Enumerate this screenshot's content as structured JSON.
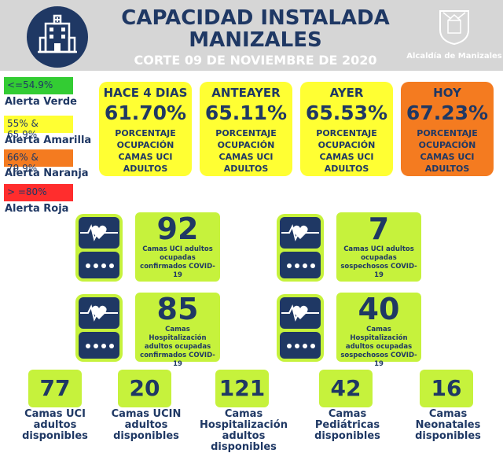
{
  "header": {
    "title_line1": "CAPACIDAD INSTALADA",
    "title_line2": "MANIZALES",
    "cut_date": "CORTE  09 DE NOVIEMBRE DE 2020",
    "municipality": "Alcaldía de Manizales",
    "hospital_icon": "hospital-icon",
    "colors": {
      "navy": "#1f3864",
      "header_gray": "#d6d6d6"
    }
  },
  "legend": [
    {
      "range": "<=54.9%",
      "label": "Alerta Verde",
      "color": "#33cc33"
    },
    {
      "range": "55% & 65.9%",
      "label": "Alerta Amarilla",
      "color": "#ffff33"
    },
    {
      "range": "66% & 79.9%",
      "label": "Alerta Naranja",
      "color": "#f47b20"
    },
    {
      "range": "> =80%",
      "label": "Alerta Roja",
      "color": "#ff2d2d"
    }
  ],
  "occupancy": [
    {
      "title": "HACE 4 DIAS",
      "value": "61.70%",
      "desc": "PORCENTAJE OCUPACIÓN CAMAS UCI ADULTOS",
      "color": "#ffff33"
    },
    {
      "title": "ANTEAYER",
      "value": "65.11%",
      "desc": "PORCENTAJE OCUPACIÓN CAMAS UCI ADULTOS",
      "color": "#ffff33"
    },
    {
      "title": "AYER",
      "value": "65.53%",
      "desc": "PORCENTAJE OCUPACIÓN CAMAS UCI ADULTOS",
      "color": "#ffff33"
    },
    {
      "title": "HOY",
      "value": "67.23%",
      "desc": "PORCENTAJE OCUPACIÓN CAMAS UCI ADULTOS",
      "color": "#f47b20"
    }
  ],
  "stats": [
    {
      "value": "92",
      "desc": "Camas UCI adultos ocupadas confirmados COVID-19",
      "icon": "heart-monitor-icon"
    },
    {
      "value": "7",
      "desc": "Camas UCI adultos ocupadas sospechosos COVID-19",
      "icon": "heart-monitor-icon"
    },
    {
      "value": "85",
      "desc": "Camas  Hospitalización adultos ocupadas confirmados COVID-19",
      "icon": "heart-monitor-icon"
    },
    {
      "value": "40",
      "desc": "Camas  Hospitalización adultos ocupadas sospechosos COVID-19",
      "icon": "heart-monitor-icon"
    }
  ],
  "available": [
    {
      "value": "77",
      "label": "Camas UCI adultos disponibles"
    },
    {
      "value": "20",
      "label": "Camas UCIN adultos disponibles"
    },
    {
      "value": "121",
      "label": "Camas Hospitalización adultos disponibles"
    },
    {
      "value": "42",
      "label": "Camas Pediátricas disponibles"
    },
    {
      "value": "16",
      "label": "Camas Neonatales disponibles"
    }
  ],
  "accent_color": "#c6f23c"
}
